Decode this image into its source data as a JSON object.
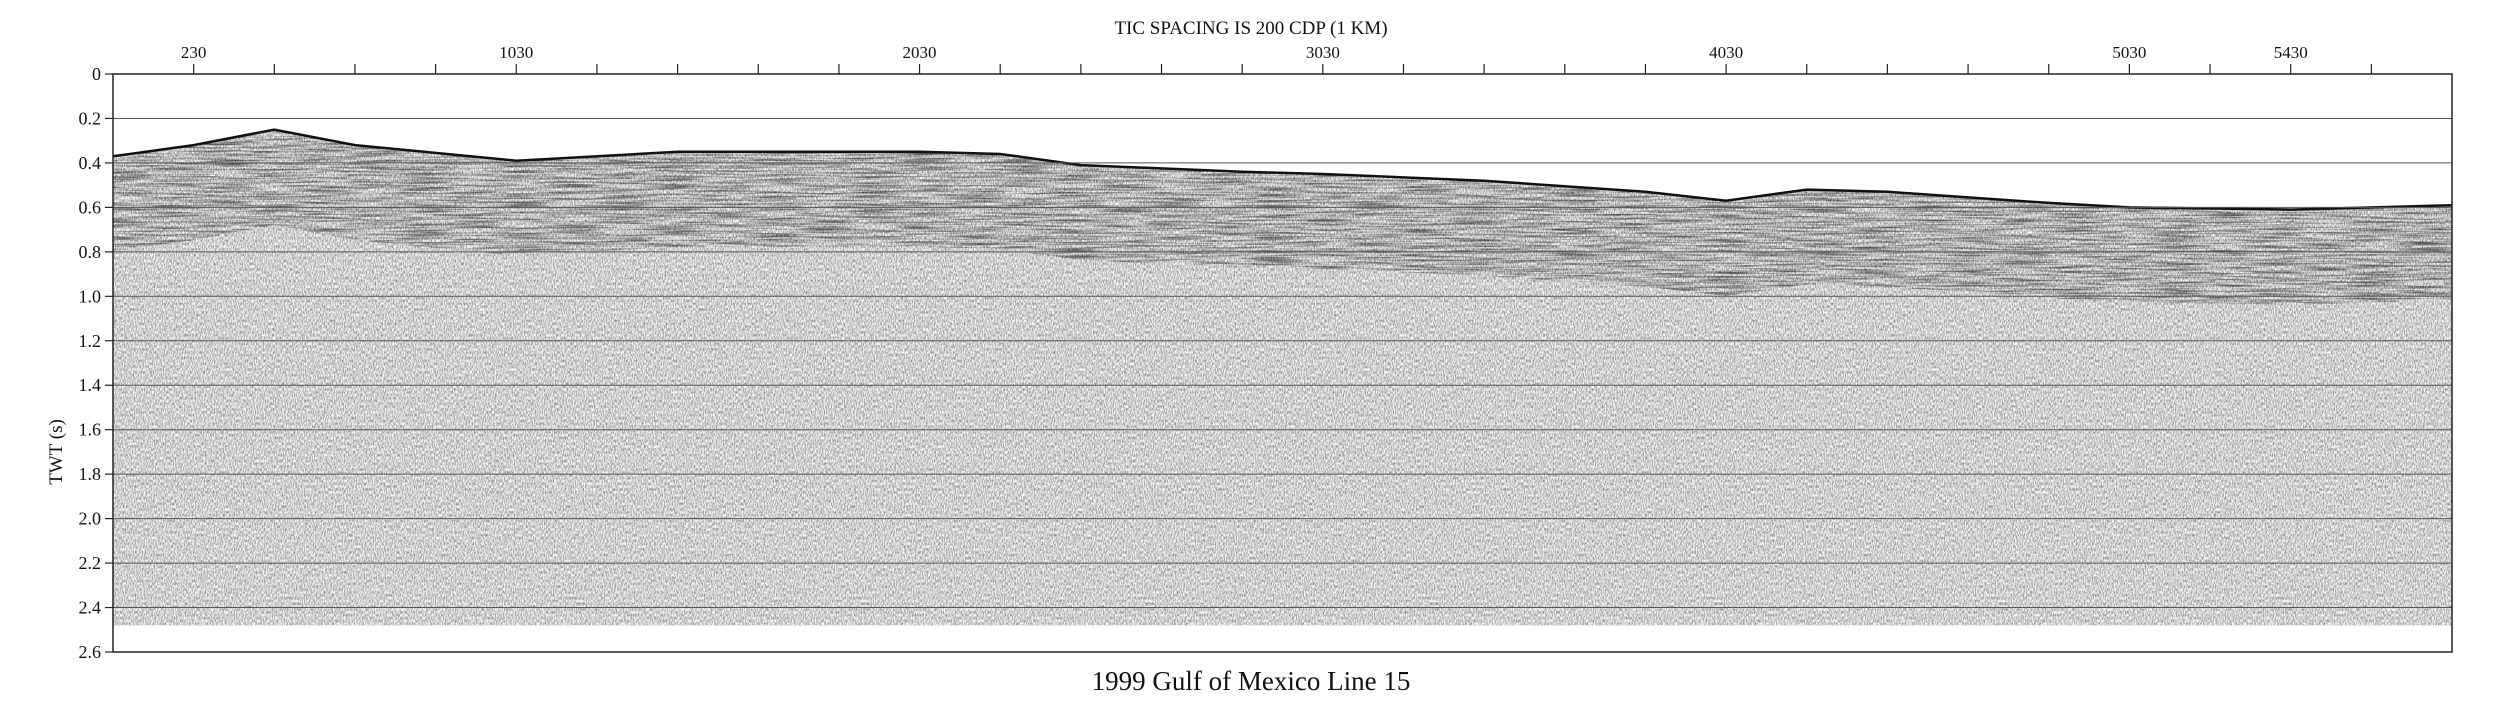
{
  "header": {
    "tic_note": "TIC SPACING IS 200 CDP (1 KM)"
  },
  "figure_title": "1999 Gulf of Mexico Line 15",
  "y_axis": {
    "label": "TWT (s)",
    "ticks": [
      "0",
      "0.2",
      "0.4",
      "0.6",
      "0.8",
      "1.0",
      "1.2",
      "1.4",
      "1.6",
      "1.8",
      "2.0",
      "2.2",
      "2.4",
      "2.6"
    ],
    "range": [
      0,
      2.6
    ],
    "gridlines": true
  },
  "x_axis": {
    "label_positions": "top",
    "cdp_labels": [
      "230",
      "1030",
      "2030",
      "3030",
      "4030",
      "5030",
      "5430"
    ],
    "label_cdp_values": [
      230,
      1030,
      2030,
      3030,
      4030,
      5030,
      5430
    ],
    "tick_spacing_cdp": 200,
    "range": [
      30,
      5830
    ]
  },
  "section": {
    "type": "seismic reflection profile",
    "colors": {
      "background": "#ffffff",
      "traces": "#000000",
      "grid": "#555555"
    },
    "data_end_twt": 2.48,
    "seafloor_twt": {
      "cdp": [
        30,
        230,
        430,
        630,
        1030,
        1430,
        1830,
        2030,
        2230,
        2430,
        2830,
        3030,
        3430,
        3830,
        4030,
        4230,
        4430,
        4830,
        5030,
        5430,
        5830
      ],
      "twt": [
        0.37,
        0.32,
        0.25,
        0.32,
        0.39,
        0.35,
        0.35,
        0.35,
        0.36,
        0.41,
        0.44,
        0.45,
        0.48,
        0.53,
        0.57,
        0.52,
        0.53,
        0.58,
        0.6,
        0.61,
        0.59
      ]
    }
  }
}
